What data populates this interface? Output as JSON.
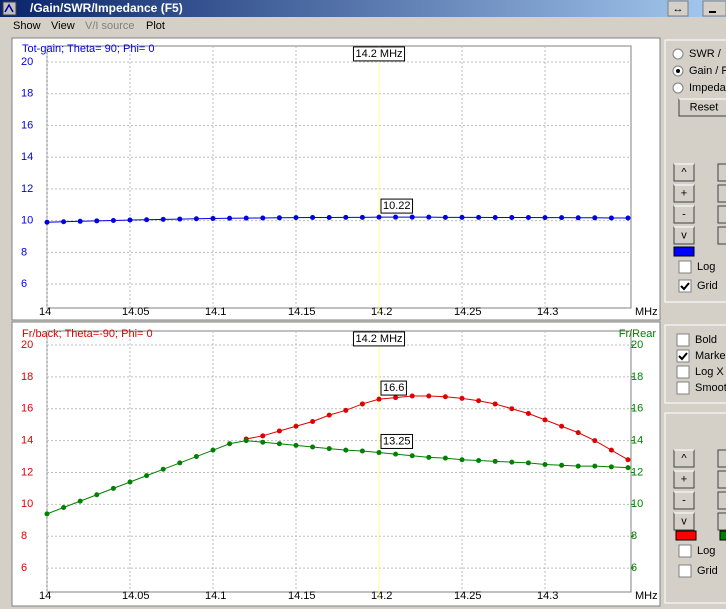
{
  "window": {
    "title": "/Gain/SWR/Impedance (F5)",
    "resize_icon": "↔"
  },
  "menu": {
    "items": [
      "Show",
      "View",
      "V/I source",
      "Plot"
    ],
    "disabled": [
      false,
      false,
      true,
      false
    ]
  },
  "chart_data": [
    {
      "type": "line",
      "title": "Tot-gain; Theta= 90; Phi= 0",
      "x_label": "MHz",
      "x": [
        14.0,
        14.01,
        14.02,
        14.03,
        14.04,
        14.05,
        14.06,
        14.07,
        14.08,
        14.09,
        14.1,
        14.11,
        14.12,
        14.13,
        14.14,
        14.15,
        14.16,
        14.17,
        14.18,
        14.19,
        14.2,
        14.21,
        14.22,
        14.23,
        14.24,
        14.25,
        14.26,
        14.27,
        14.28,
        14.29,
        14.3,
        14.31,
        14.32,
        14.33,
        14.34,
        14.35
      ],
      "xlim": [
        14,
        14.35
      ],
      "xticks": [
        14,
        14.05,
        14.1,
        14.15,
        14.2,
        14.25,
        14.3
      ],
      "ylim": [
        5,
        20
      ],
      "yticks": [
        6,
        8,
        10,
        12,
        14,
        16,
        18,
        20
      ],
      "grid": true,
      "marker": {
        "x": 14.2,
        "label": "14.2 MHz",
        "color": "#ffff80"
      },
      "series": [
        {
          "name": "Tot-gain",
          "color": "#0000e0",
          "values": [
            9.9,
            9.93,
            9.96,
            9.99,
            10.01,
            10.04,
            10.06,
            10.08,
            10.1,
            10.12,
            10.14,
            10.15,
            10.16,
            10.17,
            10.18,
            10.19,
            10.2,
            10.2,
            10.21,
            10.21,
            10.22,
            10.22,
            10.22,
            10.22,
            10.21,
            10.21,
            10.21,
            10.2,
            10.2,
            10.2,
            10.19,
            10.19,
            10.18,
            10.18,
            10.17,
            10.17
          ]
        }
      ]
    },
    {
      "type": "line",
      "title": "Fr/back; Theta=-90; Phi= 0",
      "x_label": "MHz",
      "y2_label": "Fr/Rear",
      "x": [
        14.0,
        14.01,
        14.02,
        14.03,
        14.04,
        14.05,
        14.06,
        14.07,
        14.08,
        14.09,
        14.1,
        14.11,
        14.12,
        14.13,
        14.14,
        14.15,
        14.16,
        14.17,
        14.18,
        14.19,
        14.2,
        14.21,
        14.22,
        14.23,
        14.24,
        14.25,
        14.26,
        14.27,
        14.28,
        14.29,
        14.3,
        14.31,
        14.32,
        14.33,
        14.34,
        14.35
      ],
      "xlim": [
        14,
        14.35
      ],
      "xticks": [
        14,
        14.05,
        14.1,
        14.15,
        14.2,
        14.25,
        14.3
      ],
      "ylim": [
        5,
        20
      ],
      "yticks": [
        6,
        8,
        10,
        12,
        14,
        16,
        18,
        20
      ],
      "y2lim": [
        5,
        20
      ],
      "y2ticks": [
        6,
        8,
        10,
        12,
        14,
        16,
        18,
        20
      ],
      "grid": true,
      "marker": {
        "x": 14.2,
        "label": "14.2 MHz",
        "color": "#ffff80"
      },
      "series": [
        {
          "name": "Fr/back",
          "color": "#e00000",
          "values": [
            null,
            null,
            null,
            null,
            null,
            null,
            null,
            null,
            null,
            null,
            null,
            null,
            14.1,
            14.3,
            14.6,
            14.9,
            15.2,
            15.6,
            15.9,
            16.3,
            16.6,
            16.7,
            16.8,
            16.8,
            16.75,
            16.65,
            16.5,
            16.3,
            16.0,
            15.7,
            15.3,
            14.9,
            14.5,
            14.0,
            13.4,
            12.8
          ]
        },
        {
          "name": "Fr/Rear",
          "color": "#008000",
          "axis": "y2",
          "values": [
            9.4,
            9.8,
            10.2,
            10.6,
            11.0,
            11.4,
            11.8,
            12.2,
            12.6,
            13.0,
            13.4,
            13.8,
            14.0,
            13.9,
            13.8,
            13.7,
            13.6,
            13.5,
            13.4,
            13.35,
            13.25,
            13.15,
            13.05,
            12.95,
            12.9,
            12.8,
            12.75,
            12.7,
            12.65,
            12.6,
            12.5,
            12.45,
            12.4,
            12.4,
            12.35,
            12.3
          ]
        }
      ]
    }
  ],
  "controls": {
    "modes": [
      "SWR /",
      "Gain / F",
      "Impeda"
    ],
    "selected_mode": 1,
    "reset": "Reset",
    "top_buttons": [
      "^",
      "+",
      "-",
      "v"
    ],
    "top_swatch": "#0000ff",
    "top_checks": [
      {
        "label": "Log",
        "checked": false
      },
      {
        "label": "Grid",
        "checked": true
      }
    ],
    "options": [
      {
        "label": "Bold",
        "checked": false
      },
      {
        "label": "Marker",
        "checked": true
      },
      {
        "label": "Log X",
        "checked": false
      },
      {
        "label": "Smooth",
        "checked": false
      }
    ],
    "bottom_buttons": [
      "^",
      "+",
      "-",
      "v"
    ],
    "bottom_swatches": [
      "#ff0000",
      "#008000"
    ],
    "bottom_checks": [
      {
        "label": "Log",
        "checked": false
      },
      {
        "label": "Grid",
        "checked": false
      }
    ]
  }
}
